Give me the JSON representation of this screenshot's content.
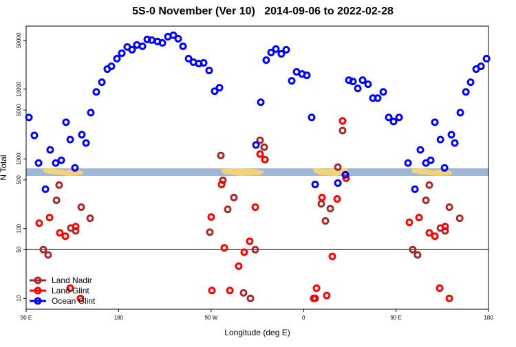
{
  "chart_data": {
    "type": "scatter",
    "title": "5S-0 November (Ver 10)   2014-09-06 to 2022-02-28",
    "x_label": "Longitude (deg E)",
    "y_label": "N Total",
    "xlim": [
      90,
      540
    ],
    "xticks": [
      {
        "value": 90,
        "label": "90 E"
      },
      180,
      {
        "value": 270,
        "label": "90 W"
      },
      {
        "value": 360,
        "label": "0"
      },
      {
        "value": 450,
        "label": "90 E"
      },
      {
        "value": 540,
        "label": "180"
      }
    ],
    "ylim": [
      7,
      80000
    ],
    "y_scale": "log",
    "yticks": [
      10,
      50,
      100,
      500,
      1000,
      5000,
      10000,
      50000
    ],
    "reference_line": 50,
    "legend_position": "bottom-left",
    "series": [
      {
        "name": "Land Nadir",
        "color": "#a52a2a",
        "x": [
          106.7,
          111.4,
          119.5,
          122.1,
          133.5,
          138.2,
          143.6,
          152.3,
          268.8,
          279.5,
          281.5,
          286.2,
          292.2,
          301.6,
          308.3,
          313.0,
          317.7,
          321.7,
          371.3,
          377.3,
          381.3,
          386.0,
          393.4,
          398.0,
          400.7,
          466.3,
          471.0,
          479.1,
          482.4,
          493.2,
          497.8,
          501.9,
          512.0
        ],
        "values": [
          50,
          42,
          255,
          421,
          102,
          93,
          203,
          141,
          89,
          1120,
          493,
          189,
          279,
          12,
          10,
          50,
          1850,
          1470,
          10,
          227,
          129,
          194,
          761,
          2550,
          592,
          50,
          42,
          255,
          421,
          102,
          93,
          203,
          141
        ]
      },
      {
        "name": "Land Glint",
        "color": "#ff0000",
        "x": [
          102.7,
          112.8,
          122.8,
          128.2,
          132.9,
          138.2,
          142.9,
          270.1,
          270.8,
          280.2,
          282.9,
          288.3,
          296.9,
          302.3,
          307.6,
          313.0,
          317.7,
          322.4,
          369.9,
          372.6,
          378.0,
          382.6,
          388.0,
          392.7,
          398.0,
          401.4,
          463.0,
          472.4,
          482.4,
          487.8,
          492.5,
          497.8,
          501.9
        ],
        "values": [
          120,
          144,
          87,
          78,
          14,
          107,
          10,
          147,
          13,
          430,
          53,
          13,
          29,
          46,
          66,
          203,
          1170,
          977,
          10,
          14,
          279,
          11,
          40,
          267,
          3500,
          528,
          123,
          144,
          87,
          78,
          14,
          107,
          10
        ]
      },
      {
        "name": "Ocean Glint",
        "color": "#0000ff",
        "x": [
          92.7,
          98.0,
          102.1,
          108.8,
          113.4,
          118.8,
          124.2,
          128.8,
          132.9,
          137.5,
          144.2,
          148.3,
          152.9,
          158.3,
          163.7,
          169.0,
          173.0,
          178.4,
          183.1,
          188.4,
          193.1,
          197.8,
          203.2,
          207.9,
          212.2,
          217.9,
          222.6,
          228.0,
          233.3,
          238.0,
          242.7,
          248.1,
          252.8,
          258.1,
          262.8,
          268.1,
          273.5,
          278.2,
          313.7,
          318.4,
          323.7,
          328.4,
          333.1,
          338.4,
          343.1,
          348.5,
          353.2,
          358.5,
          363.2,
          367.9,
          371.3,
          393.4,
          400.7,
          404.1,
          408.1,
          412.8,
          417.5,
          422.8,
          427.5,
          432.2,
          437.6,
          442.9,
          447.6,
          453.0,
          461.7,
          468.4,
          473.7,
          479.1,
          483.8,
          487.8,
          493.2,
          497.2,
          503.9,
          507.2,
          512.6,
          518.0,
          522.6,
          528.0,
          532.7,
          538.1
        ],
        "values": [
          3930,
          2170,
          873,
          367,
          1345,
          873,
          955,
          3350,
          1890,
          743,
          2220,
          1690,
          4600,
          9130,
          12560,
          19360,
          21230,
          27290,
          32700,
          40180,
          36650,
          43030,
          41100,
          51600,
          50450,
          48190,
          46040,
          56500,
          59200,
          52800,
          41100,
          27300,
          24300,
          23230,
          23770,
          18500,
          9340,
          10470,
          1580,
          6490,
          26060,
          33500,
          37500,
          32000,
          36650,
          13150,
          17690,
          16500,
          15780,
          3930,
          430,
          450,
          592,
          13450,
          12850,
          10230,
          13450,
          11730,
          7430,
          7430,
          9130,
          3930,
          3430,
          3930,
          873,
          367,
          1345,
          873,
          955,
          3350,
          1890,
          743,
          2220,
          1690,
          4600,
          9130,
          12560,
          19360,
          21230,
          27290
        ]
      }
    ]
  }
}
